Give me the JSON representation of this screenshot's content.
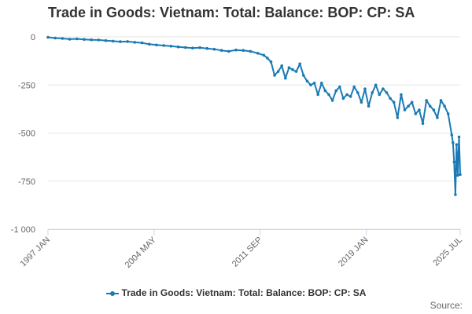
{
  "title": "Trade in Goods: Vietnam: Total: Balance: BOP: CP: SA",
  "source_label": "Source:",
  "colors": {
    "series": "#1a7ab5",
    "grid": "#e6e6e6",
    "axis": "#ccd6eb",
    "text": "#666666"
  },
  "chart_data": {
    "type": "line",
    "title": "Trade in Goods: Vietnam: Total: Balance: BOP: CP: SA",
    "xlabel": "",
    "ylabel": "",
    "ylim": [
      -1000,
      0
    ],
    "y_ticks": [
      "0",
      "-250",
      "-500",
      "-750",
      "-1 000"
    ],
    "y_tick_values": [
      0,
      -250,
      -500,
      -750,
      -1000
    ],
    "x_ticks": [
      "1997 JAN",
      "2004 MAY",
      "2011 SEP",
      "2019 JAN",
      "2025 JUL"
    ],
    "x_tick_dates": [
      "1997-01",
      "2004-05",
      "2011-09",
      "2019-01",
      "2025-07"
    ],
    "x_range": [
      "1997-01",
      "2025-07"
    ],
    "grid": true,
    "legend": "bottom",
    "series": [
      {
        "name": "Trade in Goods: Vietnam: Total: Balance: BOP: CP: SA",
        "x": [
          "1997-01",
          "1997-07",
          "1998-01",
          "1998-07",
          "1999-01",
          "1999-07",
          "2000-01",
          "2000-07",
          "2001-01",
          "2001-07",
          "2002-01",
          "2002-07",
          "2003-01",
          "2003-07",
          "2004-01",
          "2004-07",
          "2005-01",
          "2005-07",
          "2006-01",
          "2006-07",
          "2007-01",
          "2007-07",
          "2008-01",
          "2008-07",
          "2009-01",
          "2009-07",
          "2010-01",
          "2010-07",
          "2011-01",
          "2011-07",
          "2011-12",
          "2012-03",
          "2012-06",
          "2012-09",
          "2012-12",
          "2013-03",
          "2013-06",
          "2013-09",
          "2013-12",
          "2014-03",
          "2014-06",
          "2014-09",
          "2014-12",
          "2015-03",
          "2015-06",
          "2015-09",
          "2015-12",
          "2016-03",
          "2016-06",
          "2016-09",
          "2016-12",
          "2017-03",
          "2017-06",
          "2017-09",
          "2017-12",
          "2018-03",
          "2018-06",
          "2018-09",
          "2018-12",
          "2019-03",
          "2019-06",
          "2019-09",
          "2019-12",
          "2020-03",
          "2020-06",
          "2020-09",
          "2020-12",
          "2021-03",
          "2021-06",
          "2021-09",
          "2021-12",
          "2022-03",
          "2022-06",
          "2022-09",
          "2022-12",
          "2023-03",
          "2023-06",
          "2023-09",
          "2023-12",
          "2024-03",
          "2024-06",
          "2024-09",
          "2024-12",
          "2025-01",
          "2025-02",
          "2025-03",
          "2025-04",
          "2025-05",
          "2025-06",
          "2025-07"
        ],
        "values": [
          -2,
          -6,
          -8,
          -12,
          -10,
          -13,
          -15,
          -16,
          -19,
          -22,
          -25,
          -24,
          -28,
          -31,
          -38,
          -42,
          -45,
          -48,
          -52,
          -55,
          -58,
          -56,
          -60,
          -64,
          -70,
          -75,
          -68,
          -70,
          -75,
          -85,
          -95,
          -110,
          -130,
          -200,
          -180,
          -150,
          -215,
          -160,
          -170,
          -180,
          -140,
          -200,
          -230,
          -250,
          -240,
          -300,
          -240,
          -280,
          -300,
          -330,
          -280,
          -260,
          -320,
          -300,
          -310,
          -260,
          -290,
          -340,
          -270,
          -360,
          -290,
          -250,
          -300,
          -270,
          -290,
          -320,
          -340,
          -420,
          -300,
          -380,
          -360,
          -340,
          -400,
          -380,
          -450,
          -330,
          -360,
          -380,
          -420,
          -330,
          -360,
          -400,
          -510,
          -550,
          -650,
          -820,
          -560,
          -720,
          -520,
          -715
        ]
      }
    ]
  }
}
